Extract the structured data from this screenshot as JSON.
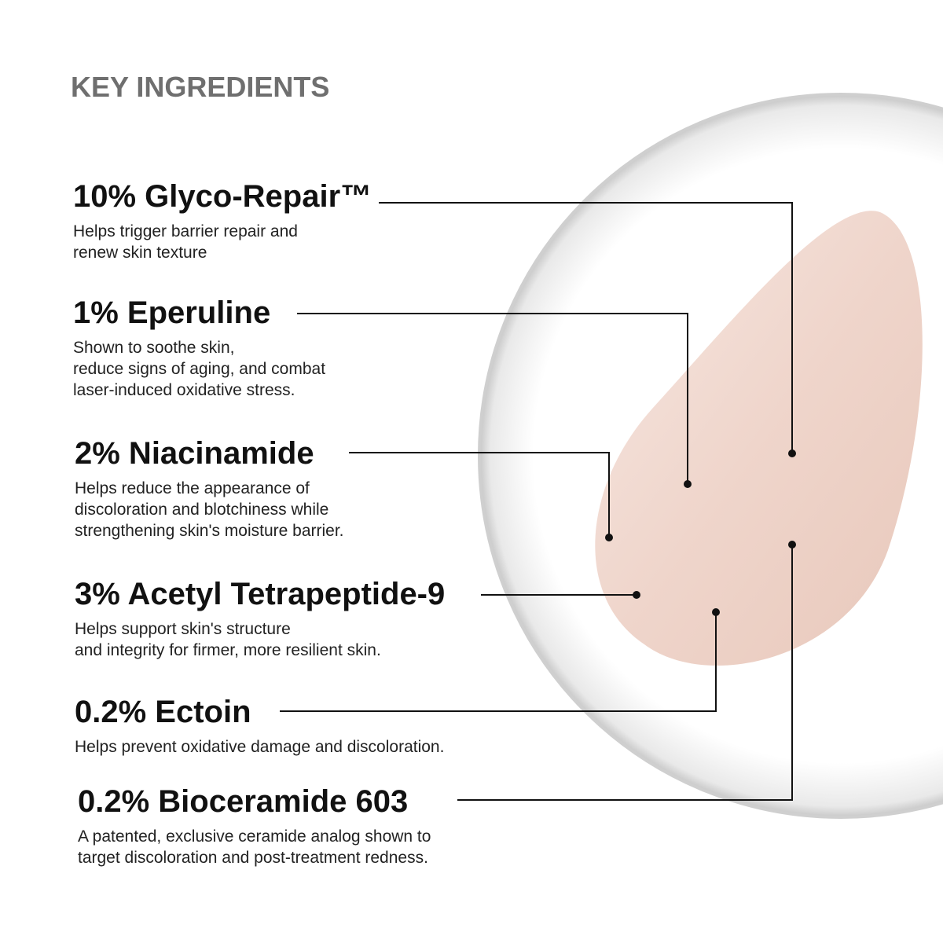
{
  "title": "KEY INGREDIENTS",
  "ingredients": [
    {
      "name": "10% Glyco-Repair™",
      "desc": "Helps trigger barrier repair and\nrenew skin texture"
    },
    {
      "name": "1% Eperuline",
      "desc": "Shown to soothe skin,\nreduce signs of aging, and combat\nlaser-induced oxidative stress."
    },
    {
      "name": "2% Niacinamide",
      "desc": "Helps reduce the appearance of\ndiscoloration and blotchiness while\nstrengthening skin's moisture barrier."
    },
    {
      "name": "3% Acetyl Tetrapeptide-9",
      "desc": "Helps support skin's structure\nand integrity for firmer, more resilient skin."
    },
    {
      "name": "0.2% Ectoin",
      "desc": "Helps prevent oxidative damage and discoloration."
    },
    {
      "name": "0.2% Bioceramide 603",
      "desc": "A patented, exclusive ceramide analog shown to\ntarget discoloration and post-treatment redness."
    }
  ],
  "colors": {
    "cream": "#f0d6cc",
    "title": "#6f6f6f"
  }
}
